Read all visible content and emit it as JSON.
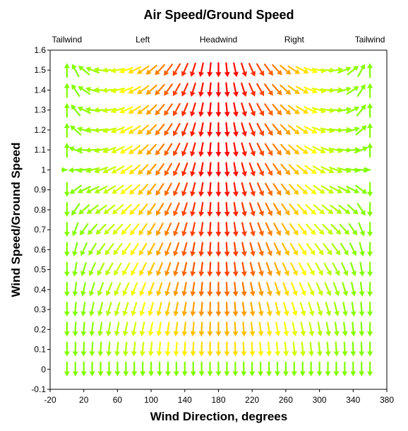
{
  "chart_data": {
    "type": "quiver",
    "title": "Air Speed/Ground Speed",
    "xlabel": "Wind Direction, degrees",
    "ylabel": "Wind Speed/Ground Speed",
    "xlim": [
      -20,
      380
    ],
    "ylim": [
      -0.1,
      1.6
    ],
    "x_ticks": [
      -20,
      20,
      60,
      100,
      140,
      180,
      220,
      260,
      300,
      340,
      380
    ],
    "y_ticks": [
      -0.1,
      0,
      0.1,
      0.2,
      0.3,
      0.4,
      0.5,
      0.6,
      0.7,
      0.8,
      0.9,
      1,
      1.1,
      1.2,
      1.3,
      1.4,
      1.5,
      1.6
    ],
    "top_labels": [
      {
        "x": 0,
        "text": "Tailwind"
      },
      {
        "x": 90,
        "text": "Left"
      },
      {
        "x": 180,
        "text": "Headwind"
      },
      {
        "x": 270,
        "text": "Right"
      },
      {
        "x": 360,
        "text": "Tailwind"
      }
    ],
    "grid": {
      "x_start": 0,
      "x_end": 360,
      "x_step": 10,
      "y_start": 0,
      "y_end": 1.5,
      "y_step": 0.1
    },
    "arrow_direction": "varies with wind direction and speed ratio",
    "color_scale": [
      "#00ff00",
      "#ffff00",
      "#ff0000"
    ],
    "legend": "none",
    "grid_lines": false
  }
}
